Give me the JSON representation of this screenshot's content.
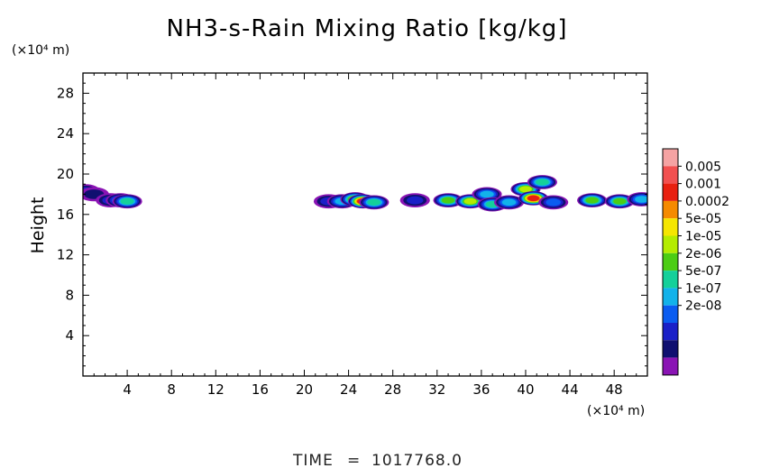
{
  "chart_data": {
    "type": "heatmap",
    "title": "NH3-s-Rain Mixing Ratio [kg/kg]",
    "ylabel": "Height",
    "x_unit_label": "(×10⁴ m)",
    "y_unit_label": "(×10⁴ m)",
    "xlim": [
      0,
      51
    ],
    "ylim": [
      0,
      30
    ],
    "x_ticks": [
      4,
      8,
      12,
      16,
      20,
      24,
      28,
      32,
      36,
      40,
      44,
      48
    ],
    "y_ticks": [
      4,
      8,
      12,
      16,
      20,
      24,
      28
    ],
    "colorbar": {
      "labels": [
        "0.005",
        "0.001",
        "0.0002",
        "5e-05",
        "1e-05",
        "2e-06",
        "5e-07",
        "1e-07",
        "2e-08"
      ],
      "colors": [
        "#f5a3a3",
        "#f25050",
        "#e82010",
        "#f58a00",
        "#f5e600",
        "#b4ec00",
        "#4ccd14",
        "#14d09a",
        "#12b2ea",
        "#0a5cf0",
        "#1a20c8",
        "#101070",
        "#8a14b4"
      ]
    },
    "cells": [
      {
        "x": 0.2,
        "y": 18.3,
        "level": 10
      },
      {
        "x": 1.0,
        "y": 18.0,
        "level": 11
      },
      {
        "x": 2.5,
        "y": 17.4,
        "level": 10
      },
      {
        "x": 3.4,
        "y": 17.4,
        "level": 8
      },
      {
        "x": 4.0,
        "y": 17.3,
        "level": 7
      },
      {
        "x": 22.2,
        "y": 17.3,
        "level": 10
      },
      {
        "x": 23.4,
        "y": 17.3,
        "level": 8
      },
      {
        "x": 24.6,
        "y": 17.5,
        "level": 5
      },
      {
        "x": 25.3,
        "y": 17.3,
        "level": 2
      },
      {
        "x": 26.3,
        "y": 17.2,
        "level": 7
      },
      {
        "x": 30.0,
        "y": 17.4,
        "level": 10
      },
      {
        "x": 33.0,
        "y": 17.4,
        "level": 6
      },
      {
        "x": 35.0,
        "y": 17.3,
        "level": 5
      },
      {
        "x": 36.5,
        "y": 18.0,
        "level": 8
      },
      {
        "x": 37.0,
        "y": 17.0,
        "level": 7
      },
      {
        "x": 38.5,
        "y": 17.2,
        "level": 8
      },
      {
        "x": 40.0,
        "y": 18.5,
        "level": 5
      },
      {
        "x": 40.7,
        "y": 17.6,
        "level": 2
      },
      {
        "x": 41.5,
        "y": 19.2,
        "level": 7
      },
      {
        "x": 42.5,
        "y": 17.2,
        "level": 9
      },
      {
        "x": 46.0,
        "y": 17.4,
        "level": 6
      },
      {
        "x": 48.5,
        "y": 17.3,
        "level": 6
      },
      {
        "x": 50.5,
        "y": 17.5,
        "level": 8
      }
    ]
  },
  "footer": {
    "time_label": "TIME",
    "time_value": "1017768.0"
  }
}
